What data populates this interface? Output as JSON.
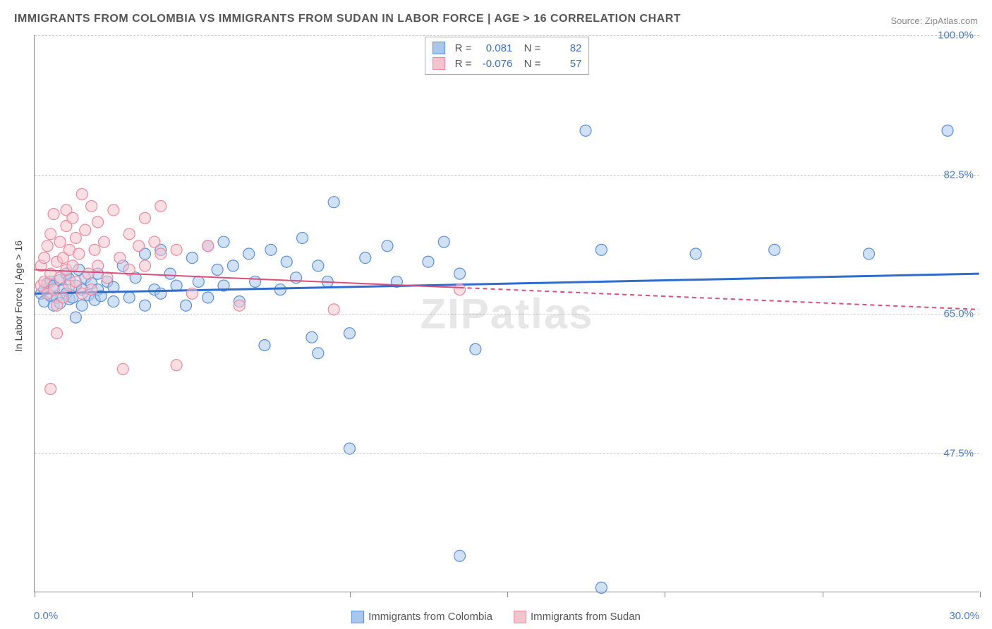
{
  "title": "IMMIGRANTS FROM COLOMBIA VS IMMIGRANTS FROM SUDAN IN LABOR FORCE | AGE > 16 CORRELATION CHART",
  "source": "Source: ZipAtlas.com",
  "watermark": "ZIPatlas",
  "y_axis_label": "In Labor Force | Age > 16",
  "chart": {
    "type": "scatter",
    "xlim": [
      0,
      30
    ],
    "ylim": [
      30,
      100
    ],
    "x_ticks": [
      0,
      5,
      10,
      15,
      20,
      25,
      30
    ],
    "y_gridlines": [
      47.5,
      65.0,
      82.5,
      100.0
    ],
    "y_tick_labels": [
      "47.5%",
      "65.0%",
      "82.5%",
      "100.0%"
    ],
    "x_min_label": "0.0%",
    "x_max_label": "30.0%",
    "background_color": "#ffffff",
    "grid_color": "#cccccc",
    "axis_color": "#888888",
    "marker_radius": 8,
    "marker_opacity": 0.55,
    "series": [
      {
        "name": "Immigrants from Colombia",
        "color_fill": "#a9c6ec",
        "color_stroke": "#5b8fd4",
        "trend_color": "#2e6cd0",
        "trend_width": 3,
        "trend_dash": "none",
        "R": 0.081,
        "N": 82,
        "trend": {
          "x1": 0,
          "y1": 67.5,
          "x2": 30,
          "y2": 70.0
        },
        "points": [
          [
            0.2,
            67.5
          ],
          [
            0.3,
            68.0
          ],
          [
            0.3,
            66.5
          ],
          [
            0.4,
            68.8
          ],
          [
            0.5,
            67.2
          ],
          [
            0.5,
            69.0
          ],
          [
            0.6,
            66.0
          ],
          [
            0.6,
            68.5
          ],
          [
            0.7,
            67.0
          ],
          [
            0.8,
            69.2
          ],
          [
            0.8,
            66.3
          ],
          [
            0.9,
            68.0
          ],
          [
            1.0,
            67.5
          ],
          [
            1.0,
            70.0
          ],
          [
            1.1,
            66.8
          ],
          [
            1.1,
            69.3
          ],
          [
            1.2,
            67.0
          ],
          [
            1.3,
            68.5
          ],
          [
            1.3,
            64.5
          ],
          [
            1.4,
            70.5
          ],
          [
            1.5,
            68.0
          ],
          [
            1.5,
            66.0
          ],
          [
            1.6,
            69.5
          ],
          [
            1.7,
            67.3
          ],
          [
            1.8,
            68.8
          ],
          [
            1.9,
            66.7
          ],
          [
            2.0,
            70.0
          ],
          [
            2.0,
            68.0
          ],
          [
            2.1,
            67.2
          ],
          [
            2.3,
            69.0
          ],
          [
            2.5,
            66.5
          ],
          [
            2.5,
            68.3
          ],
          [
            2.8,
            71.0
          ],
          [
            3.0,
            67.0
          ],
          [
            3.2,
            69.5
          ],
          [
            3.5,
            66.0
          ],
          [
            3.5,
            72.5
          ],
          [
            3.8,
            68.0
          ],
          [
            4.0,
            73.0
          ],
          [
            4.0,
            67.5
          ],
          [
            4.3,
            70.0
          ],
          [
            4.5,
            68.5
          ],
          [
            4.8,
            66.0
          ],
          [
            5.0,
            72.0
          ],
          [
            5.2,
            69.0
          ],
          [
            5.5,
            73.5
          ],
          [
            5.5,
            67.0
          ],
          [
            5.8,
            70.5
          ],
          [
            6.0,
            74.0
          ],
          [
            6.0,
            68.5
          ],
          [
            6.3,
            71.0
          ],
          [
            6.5,
            66.5
          ],
          [
            6.8,
            72.5
          ],
          [
            7.0,
            69.0
          ],
          [
            7.3,
            61.0
          ],
          [
            7.5,
            73.0
          ],
          [
            7.8,
            68.0
          ],
          [
            8.0,
            71.5
          ],
          [
            8.3,
            69.5
          ],
          [
            8.5,
            74.5
          ],
          [
            8.8,
            62.0
          ],
          [
            9.0,
            71.0
          ],
          [
            9.0,
            60.0
          ],
          [
            9.3,
            69.0
          ],
          [
            9.5,
            79.0
          ],
          [
            10.0,
            62.5
          ],
          [
            10.0,
            48.0
          ],
          [
            10.5,
            72.0
          ],
          [
            11.2,
            73.5
          ],
          [
            11.5,
            69.0
          ],
          [
            12.5,
            71.5
          ],
          [
            13.0,
            74.0
          ],
          [
            13.5,
            70.0
          ],
          [
            13.5,
            34.5
          ],
          [
            14.0,
            60.5
          ],
          [
            17.5,
            88.0
          ],
          [
            18.0,
            73.0
          ],
          [
            18.0,
            30.5
          ],
          [
            21.0,
            72.5
          ],
          [
            23.5,
            73.0
          ],
          [
            26.5,
            72.5
          ],
          [
            29.0,
            88.0
          ]
        ]
      },
      {
        "name": "Immigrants from Sudan",
        "color_fill": "#f4c3cd",
        "color_stroke": "#e88aa0",
        "trend_color": "#d94f7a",
        "trend_width": 2,
        "trend_dash": "solid_then_dash",
        "R": -0.076,
        "N": 57,
        "trend": {
          "x1": 0,
          "y1": 70.5,
          "x2": 30,
          "y2": 65.5
        },
        "trend_solid_end_x": 13.5,
        "points": [
          [
            0.2,
            71.0
          ],
          [
            0.2,
            68.5
          ],
          [
            0.3,
            72.0
          ],
          [
            0.3,
            69.0
          ],
          [
            0.4,
            73.5
          ],
          [
            0.4,
            67.5
          ],
          [
            0.5,
            75.0
          ],
          [
            0.5,
            70.0
          ],
          [
            0.5,
            55.5
          ],
          [
            0.6,
            68.0
          ],
          [
            0.6,
            77.5
          ],
          [
            0.7,
            71.5
          ],
          [
            0.7,
            66.0
          ],
          [
            0.7,
            62.5
          ],
          [
            0.8,
            74.0
          ],
          [
            0.8,
            69.5
          ],
          [
            0.9,
            72.0
          ],
          [
            0.9,
            67.0
          ],
          [
            1.0,
            76.0
          ],
          [
            1.0,
            70.5
          ],
          [
            1.0,
            78.0
          ],
          [
            1.1,
            68.5
          ],
          [
            1.1,
            73.0
          ],
          [
            1.2,
            71.0
          ],
          [
            1.2,
            77.0
          ],
          [
            1.3,
            69.0
          ],
          [
            1.3,
            74.5
          ],
          [
            1.4,
            72.5
          ],
          [
            1.5,
            80.0
          ],
          [
            1.5,
            67.5
          ],
          [
            1.6,
            75.5
          ],
          [
            1.7,
            70.0
          ],
          [
            1.8,
            78.5
          ],
          [
            1.8,
            68.0
          ],
          [
            1.9,
            73.0
          ],
          [
            2.0,
            76.5
          ],
          [
            2.0,
            71.0
          ],
          [
            2.2,
            74.0
          ],
          [
            2.3,
            69.5
          ],
          [
            2.5,
            78.0
          ],
          [
            2.7,
            72.0
          ],
          [
            2.8,
            58.0
          ],
          [
            3.0,
            75.0
          ],
          [
            3.0,
            70.5
          ],
          [
            3.3,
            73.5
          ],
          [
            3.5,
            77.0
          ],
          [
            3.5,
            71.0
          ],
          [
            3.8,
            74.0
          ],
          [
            4.0,
            78.5
          ],
          [
            4.0,
            72.5
          ],
          [
            4.5,
            73.0
          ],
          [
            4.5,
            58.5
          ],
          [
            5.0,
            67.5
          ],
          [
            5.5,
            73.5
          ],
          [
            6.5,
            66.0
          ],
          [
            9.5,
            65.5
          ],
          [
            13.5,
            68.0
          ]
        ]
      }
    ]
  },
  "bottom_legend": [
    {
      "label": "Immigrants from Colombia",
      "fill": "#a9c6ec",
      "stroke": "#5b8fd4"
    },
    {
      "label": "Immigrants from Sudan",
      "fill": "#f4c3cd",
      "stroke": "#e88aa0"
    }
  ]
}
